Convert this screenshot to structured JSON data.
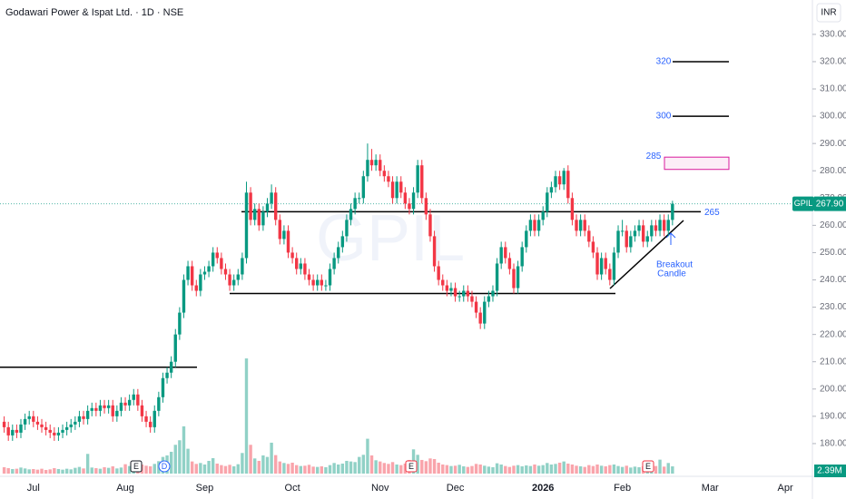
{
  "chart_data": {
    "type": "candlestick",
    "title": "Godawari Power & Ispat Ltd. · 1D · NSE",
    "watermark": "GPIL",
    "currency": "INR",
    "symbol": "GPIL",
    "colors": {
      "up": "#089981",
      "down": "#f23645",
      "level": "#000000",
      "target": "#2962ff",
      "box": "#d81b9c"
    },
    "open": [
      188,
      186,
      183,
      185,
      184,
      187,
      189,
      190,
      188,
      187,
      186,
      185,
      184,
      183,
      184,
      185,
      186,
      187,
      188,
      190,
      189,
      192,
      193,
      192,
      194,
      193,
      194,
      190,
      192,
      195,
      194,
      196,
      198,
      194,
      190,
      188,
      186,
      192,
      197,
      204,
      206,
      210,
      220,
      228,
      240,
      245,
      238,
      236,
      242,
      243,
      245,
      250,
      248,
      244,
      242,
      238,
      240,
      242,
      248,
      272,
      262,
      266,
      260,
      265,
      268,
      272,
      262,
      255,
      258,
      250,
      248,
      244,
      246,
      242,
      240,
      238,
      240,
      238,
      238,
      244,
      248,
      252,
      256,
      262,
      266,
      270,
      270,
      278,
      284,
      282,
      284,
      280,
      278,
      276,
      270,
      276,
      272,
      268,
      266,
      272,
      282,
      270,
      264,
      256,
      245,
      240,
      238,
      236,
      237,
      234,
      234,
      236,
      234,
      232,
      228,
      224,
      232,
      234,
      236,
      246,
      252,
      248,
      244,
      237,
      245,
      252,
      258,
      262,
      258,
      262,
      265,
      272,
      274,
      278,
      275,
      280,
      270,
      262,
      258,
      262,
      258,
      254,
      250,
      242,
      248,
      244,
      240,
      250,
      258,
      258,
      252,
      256,
      258,
      260,
      254,
      256,
      260,
      258,
      262,
      258,
      262
    ],
    "high": [
      190,
      188,
      187,
      187,
      189,
      191,
      192,
      192,
      190,
      189,
      188,
      187,
      186,
      186,
      187,
      188,
      189,
      190,
      192,
      192,
      194,
      195,
      195,
      196,
      196,
      196,
      196,
      194,
      197,
      197,
      198,
      200,
      200,
      196,
      192,
      190,
      194,
      199,
      206,
      208,
      212,
      222,
      230,
      242,
      247,
      247,
      240,
      244,
      245,
      247,
      252,
      252,
      250,
      246,
      244,
      242,
      244,
      250,
      276,
      274,
      268,
      268,
      267,
      270,
      275,
      274,
      264,
      260,
      260,
      252,
      250,
      248,
      248,
      244,
      242,
      242,
      242,
      240,
      246,
      250,
      254,
      258,
      264,
      268,
      272,
      272,
      280,
      290,
      288,
      286,
      286,
      282,
      280,
      278,
      278,
      278,
      274,
      270,
      274,
      284,
      284,
      272,
      266,
      258,
      247,
      242,
      240,
      239,
      239,
      236,
      238,
      238,
      236,
      234,
      230,
      234,
      236,
      238,
      248,
      254,
      254,
      250,
      246,
      247,
      254,
      260,
      264,
      264,
      264,
      267,
      274,
      276,
      280,
      280,
      281,
      282,
      272,
      264,
      264,
      264,
      260,
      256,
      252,
      250,
      250,
      246,
      252,
      260,
      262,
      260,
      258,
      260,
      262,
      262,
      258,
      262,
      262,
      264,
      264,
      264,
      269
    ],
    "low": [
      184,
      181,
      181,
      182,
      182,
      185,
      187,
      186,
      185,
      184,
      183,
      182,
      181,
      181,
      182,
      183,
      184,
      185,
      186,
      187,
      187,
      190,
      190,
      190,
      191,
      191,
      188,
      188,
      190,
      192,
      192,
      194,
      192,
      188,
      186,
      184,
      184,
      190,
      195,
      202,
      204,
      208,
      218,
      226,
      238,
      236,
      234,
      234,
      240,
      241,
      243,
      246,
      242,
      240,
      236,
      236,
      238,
      240,
      246,
      260,
      260,
      258,
      258,
      263,
      266,
      260,
      253,
      253,
      248,
      246,
      242,
      242,
      240,
      238,
      236,
      236,
      236,
      236,
      236,
      242,
      246,
      250,
      254,
      260,
      264,
      268,
      268,
      276,
      280,
      280,
      278,
      276,
      274,
      268,
      268,
      270,
      266,
      264,
      264,
      270,
      268,
      262,
      254,
      243,
      238,
      236,
      234,
      234,
      232,
      232,
      232,
      232,
      230,
      226,
      222,
      222,
      230,
      232,
      234,
      244,
      246,
      242,
      235,
      235,
      243,
      250,
      256,
      256,
      256,
      260,
      263,
      270,
      272,
      273,
      273,
      268,
      260,
      256,
      256,
      256,
      252,
      248,
      240,
      240,
      242,
      238,
      238,
      248,
      256,
      250,
      250,
      254,
      256,
      252,
      252,
      254,
      256,
      256,
      256,
      256,
      260
    ],
    "close": [
      186,
      183,
      185,
      184,
      187,
      189,
      190,
      188,
      187,
      186,
      185,
      184,
      183,
      184,
      185,
      186,
      187,
      188,
      190,
      189,
      192,
      193,
      192,
      194,
      193,
      194,
      190,
      192,
      195,
      194,
      196,
      198,
      194,
      190,
      188,
      186,
      192,
      197,
      204,
      206,
      210,
      220,
      228,
      240,
      245,
      238,
      236,
      242,
      243,
      245,
      250,
      248,
      244,
      242,
      238,
      240,
      242,
      248,
      272,
      262,
      266,
      260,
      265,
      268,
      272,
      262,
      255,
      258,
      250,
      248,
      244,
      246,
      242,
      240,
      238,
      240,
      238,
      238,
      244,
      248,
      252,
      256,
      262,
      266,
      270,
      270,
      278,
      284,
      282,
      284,
      280,
      278,
      276,
      270,
      276,
      272,
      268,
      266,
      272,
      282,
      270,
      264,
      256,
      245,
      240,
      238,
      236,
      237,
      234,
      234,
      236,
      234,
      232,
      228,
      224,
      232,
      234,
      236,
      246,
      252,
      248,
      244,
      237,
      245,
      252,
      258,
      262,
      258,
      262,
      265,
      272,
      274,
      278,
      275,
      280,
      270,
      262,
      258,
      262,
      258,
      254,
      250,
      242,
      248,
      244,
      240,
      250,
      258,
      258,
      252,
      256,
      258,
      260,
      254,
      256,
      260,
      258,
      262,
      258,
      262,
      267.9
    ],
    "last_label": "267.90",
    "volume": [
      2.1,
      1.8,
      1.5,
      1.6,
      2.0,
      1.7,
      1.4,
      1.5,
      1.3,
      1.6,
      1.2,
      1.4,
      1.8,
      1.5,
      1.3,
      1.6,
      1.4,
      1.9,
      2.2,
      1.7,
      6.5,
      2.0,
      1.8,
      1.6,
      2.1,
      1.9,
      2.4,
      1.7,
      2.0,
      3.1,
      2.5,
      2.8,
      2.2,
      3.0,
      2.6,
      2.4,
      3.2,
      4.1,
      5.5,
      6.0,
      7.2,
      9.5,
      11.0,
      15.6,
      8.2,
      4.0,
      3.2,
      3.5,
      3.0,
      4.2,
      5.1,
      3.3,
      2.8,
      2.5,
      2.9,
      2.4,
      3.1,
      6.8,
      38.0,
      9.5,
      5.0,
      4.2,
      6.0,
      5.5,
      10.2,
      6.1,
      4.0,
      3.5,
      3.2,
      3.6,
      2.8,
      2.5,
      2.6,
      2.9,
      2.3,
      2.2,
      2.4,
      2.1,
      2.8,
      3.5,
      3.0,
      3.3,
      4.2,
      4.0,
      3.8,
      5.5,
      6.2,
      11.5,
      6.0,
      4.4,
      4.0,
      3.5,
      3.2,
      3.8,
      3.0,
      2.8,
      3.3,
      4.5,
      8.0,
      6.2,
      4.5,
      4.1,
      5.0,
      4.8,
      3.6,
      3.0,
      2.8,
      2.5,
      2.6,
      2.9,
      2.4,
      2.2,
      2.5,
      3.2,
      3.0,
      2.6,
      2.3,
      2.1,
      3.4,
      3.0,
      2.5,
      2.2,
      2.6,
      2.8,
      2.4,
      2.7,
      2.5,
      3.0,
      2.6,
      2.8,
      3.5,
      3.0,
      3.2,
      3.6,
      4.0,
      3.3,
      3.0,
      2.6,
      2.4,
      2.2,
      2.8,
      2.5,
      3.0,
      2.6,
      2.4,
      2.8,
      3.0,
      2.5,
      2.2,
      2.6,
      2.0,
      2.3,
      2.1,
      2.4,
      3.8,
      2.2,
      2.5,
      4.6,
      2.3,
      3.5,
      2.39
    ],
    "volume_label": "2.39M",
    "xlim": [
      -1,
      193.5
    ],
    "xticks": [
      {
        "value": 7,
        "label": "Jul"
      },
      {
        "value": 29,
        "label": "Aug"
      },
      {
        "value": 48,
        "label": "Sep"
      },
      {
        "value": 69,
        "label": "Oct"
      },
      {
        "value": 90,
        "label": "Nov"
      },
      {
        "value": 108,
        "label": "Dec"
      },
      {
        "value": 129,
        "label": "2026"
      },
      {
        "value": 148,
        "label": "Feb"
      },
      {
        "value": 169,
        "label": "Mar"
      },
      {
        "value": 187,
        "label": "Apr"
      }
    ],
    "ylim": [
      168,
      342.6
    ],
    "yticks": [
      {
        "value": 180,
        "label": "180.00"
      },
      {
        "value": 190,
        "label": "190.00"
      },
      {
        "value": 200,
        "label": "200.00"
      },
      {
        "value": 210,
        "label": "210.00"
      },
      {
        "value": 220,
        "label": "220.00"
      },
      {
        "value": 230,
        "label": "230.00"
      },
      {
        "value": 240,
        "label": "240.00"
      },
      {
        "value": 250,
        "label": "250.00"
      },
      {
        "value": 260,
        "label": "260.00"
      },
      {
        "value": 270,
        "label": "270.00"
      },
      {
        "value": 280,
        "label": "280.00"
      },
      {
        "value": 290,
        "label": "290.00"
      },
      {
        "value": 300,
        "label": "300.00"
      },
      {
        "value": 310,
        "label": "310.00"
      },
      {
        "value": 320,
        "label": "320.00"
      },
      {
        "value": 330,
        "label": "330.00"
      }
    ],
    "levels": [
      265,
      235,
      208
    ],
    "targets": [
      320,
      300
    ],
    "box": [
      280.5,
      285
    ],
    "annotation": [
      "Breakout",
      "Candle"
    ],
    "events": [
      "E",
      "D",
      "E",
      "E"
    ]
  }
}
